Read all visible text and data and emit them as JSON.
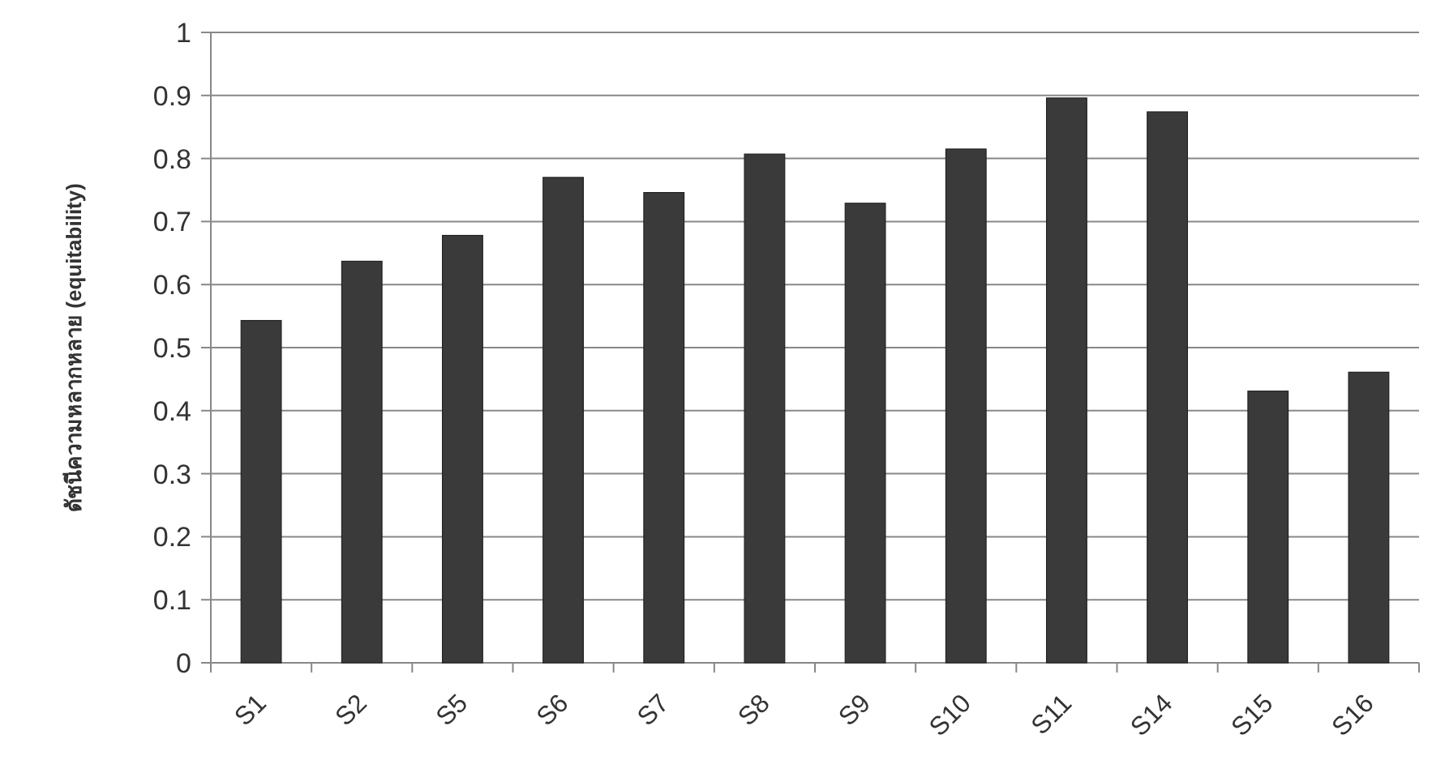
{
  "chart_data": {
    "type": "bar",
    "ylabel": "ดัชนีความหลากหลาย (equitability)",
    "categories": [
      "S1",
      "S2",
      "S5",
      "S6",
      "S7",
      "S8",
      "S9",
      "S10",
      "S11",
      "S14",
      "S15",
      "S16"
    ],
    "values": [
      0.543,
      0.637,
      0.678,
      0.77,
      0.746,
      0.807,
      0.729,
      0.815,
      0.896,
      0.874,
      0.431,
      0.461
    ],
    "color": "#3a3a3a",
    "ylim": [
      0,
      1
    ],
    "yticks": [
      0,
      0.1,
      0.2,
      0.3,
      0.4,
      0.5,
      0.6,
      0.7,
      0.8,
      0.9,
      1
    ],
    "grid": "y"
  }
}
